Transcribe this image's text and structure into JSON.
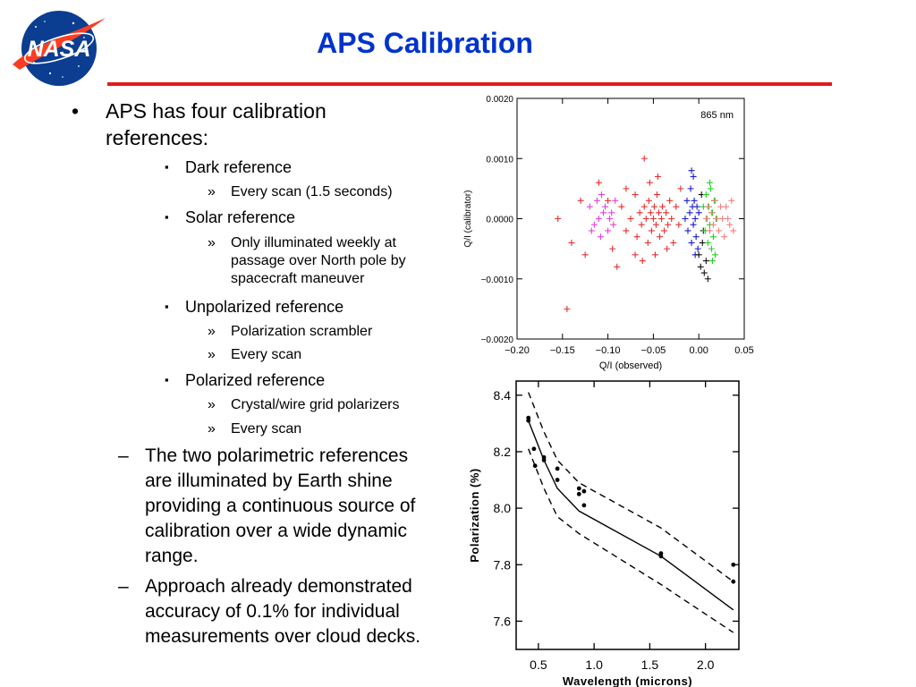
{
  "slide": {
    "title": "APS Calibration",
    "logo_text": "NASA",
    "colors": {
      "title": "#0033cc",
      "rule": "#e21b1b",
      "logo_blue": "#0b3d91",
      "logo_red": "#fc3d21"
    }
  },
  "bullets": {
    "main": {
      "marker": "•",
      "lines": [
        "APS has four calibration",
        "references:"
      ]
    },
    "dark": {
      "marker": "▪",
      "label": "Dark reference"
    },
    "dark_sub": {
      "marker": "»",
      "lines": [
        "Every scan (1.5 seconds)"
      ]
    },
    "solar": {
      "marker": "▪",
      "label": "Solar reference"
    },
    "solar_sub": {
      "marker": "»",
      "lines": [
        "Only illuminated weekly at",
        "passage over North pole by",
        "spacecraft maneuver"
      ]
    },
    "unpol": {
      "marker": "▪",
      "label": "Unpolarized reference"
    },
    "unpol_sub1": {
      "marker": "»",
      "lines": [
        "Polarization scrambler"
      ]
    },
    "unpol_sub2": {
      "marker": "»",
      "lines": [
        "Every scan"
      ]
    },
    "pol": {
      "marker": "▪",
      "label": "Polarized reference"
    },
    "pol_sub1": {
      "marker": "»",
      "lines": [
        "Crystal/wire grid polarizers"
      ]
    },
    "pol_sub2": {
      "marker": "»",
      "lines": [
        "Every scan"
      ]
    },
    "dash1": {
      "marker": "–",
      "lines": [
        "The two polarimetric references",
        "are illuminated by Earth shine",
        "providing a continuous source of",
        "calibration over a wide dynamic",
        "range."
      ]
    },
    "dash2": {
      "marker": "–",
      "lines": [
        "Approach already demonstrated",
        "accuracy of 0.1% for individual",
        "measurements over cloud decks."
      ]
    }
  },
  "chart_data": [
    {
      "type": "scatter",
      "annotation": "865 nm",
      "xlabel": "Q/I (observed)",
      "ylabel": "Q/I (calibrator)",
      "xlim": [
        -0.2,
        0.05
      ],
      "ylim": [
        -0.002,
        0.002
      ],
      "xticks": [
        -0.2,
        -0.15,
        -0.1,
        -0.05,
        0.0,
        0.05
      ],
      "xtick_labels": [
        "−0.20",
        "−0.15",
        "−0.10",
        "−0.05",
        "0.00",
        "0.05"
      ],
      "yticks": [
        -0.002,
        -0.001,
        0.0,
        0.001,
        0.002
      ],
      "ytick_labels": [
        "−0.0020",
        "−0.0010",
        "0.0000",
        "0.0010",
        "0.0020"
      ],
      "marker": "+",
      "series": [
        {
          "color": "#e03030",
          "points": [
            [
              -0.155,
              0.0
            ],
            [
              -0.14,
              -0.0004
            ],
            [
              -0.1,
              0.0003
            ],
            [
              -0.085,
              0.0002
            ],
            [
              -0.08,
              -0.0002
            ],
            [
              -0.075,
              0.0
            ],
            [
              -0.07,
              0.0004
            ],
            [
              -0.068,
              -0.0003
            ],
            [
              -0.065,
              0.0001
            ],
            [
              -0.063,
              -0.0001
            ],
            [
              -0.06,
              0.0002
            ],
            [
              -0.058,
              0.0
            ],
            [
              -0.056,
              -0.0004
            ],
            [
              -0.055,
              0.0003
            ],
            [
              -0.053,
              0.0001
            ],
            [
              -0.052,
              -0.0002
            ],
            [
              -0.05,
              0.0
            ],
            [
              -0.049,
              0.0002
            ],
            [
              -0.047,
              -0.0001
            ],
            [
              -0.046,
              0.0004
            ],
            [
              -0.044,
              0.0001
            ],
            [
              -0.043,
              -0.0003
            ],
            [
              -0.041,
              0.0
            ],
            [
              -0.04,
              0.0002
            ],
            [
              -0.038,
              -0.0002
            ],
            [
              -0.036,
              0.0001
            ],
            [
              -0.034,
              -0.0001
            ],
            [
              -0.032,
              0.0003
            ],
            [
              -0.03,
              0.0
            ],
            [
              -0.028,
              -0.0004
            ],
            [
              -0.025,
              0.0002
            ],
            [
              -0.022,
              -0.0001
            ],
            [
              -0.06,
              0.001
            ],
            [
              -0.054,
              0.0006
            ],
            [
              -0.048,
              -0.0006
            ],
            [
              -0.062,
              -0.0007
            ],
            [
              -0.11,
              0.0006
            ],
            [
              -0.095,
              -0.0005
            ],
            [
              -0.13,
              0.0003
            ],
            [
              -0.125,
              -0.0006
            ],
            [
              -0.02,
              0.0005
            ],
            [
              -0.09,
              -0.0008
            ],
            [
              -0.045,
              0.0007
            ],
            [
              -0.035,
              -0.0005
            ],
            [
              -0.08,
              0.0005
            ],
            [
              -0.07,
              -0.0006
            ],
            [
              -0.145,
              -0.0015
            ]
          ]
        },
        {
          "color": "#e040e0",
          "points": [
            [
              -0.12,
              0.0002
            ],
            [
              -0.115,
              -0.0001
            ],
            [
              -0.112,
              0.0003
            ],
            [
              -0.11,
              0.0
            ],
            [
              -0.108,
              -0.0003
            ],
            [
              -0.105,
              0.0001
            ],
            [
              -0.103,
              0.0002
            ],
            [
              -0.1,
              -0.0002
            ],
            [
              -0.098,
              0.0
            ],
            [
              -0.096,
              0.0001
            ],
            [
              -0.094,
              -0.0001
            ],
            [
              -0.092,
              0.0003
            ],
            [
              -0.118,
              -0.0002
            ],
            [
              -0.107,
              0.0004
            ]
          ]
        },
        {
          "color": "#1a1ad0",
          "points": [
            [
              -0.015,
              0.0
            ],
            [
              -0.013,
              0.0003
            ],
            [
              -0.012,
              -0.0002
            ],
            [
              -0.01,
              0.0001
            ],
            [
              -0.009,
              0.0005
            ],
            [
              -0.008,
              -0.0004
            ],
            [
              -0.007,
              0.0002
            ],
            [
              -0.006,
              -0.0001
            ],
            [
              -0.005,
              0.0003
            ],
            [
              -0.004,
              0.0
            ],
            [
              -0.003,
              -0.0003
            ],
            [
              -0.002,
              0.0002
            ],
            [
              -0.001,
              -0.0005
            ],
            [
              0.0,
              0.0001
            ],
            [
              -0.006,
              0.0007
            ],
            [
              -0.004,
              -0.0006
            ],
            [
              -0.008,
              0.0008
            ]
          ]
        },
        {
          "color": "#111111",
          "points": [
            [
              0.0,
              -0.0006
            ],
            [
              0.002,
              -0.0008
            ],
            [
              0.004,
              -0.0004
            ],
            [
              0.006,
              -0.0009
            ],
            [
              0.008,
              -0.0007
            ],
            [
              0.01,
              -0.001
            ],
            [
              0.003,
              0.0004
            ],
            [
              0.005,
              -0.0002
            ]
          ]
        },
        {
          "color": "#20d020",
          "points": [
            [
              0.005,
              0.0002
            ],
            [
              0.007,
              -0.0002
            ],
            [
              0.008,
              0.0004
            ],
            [
              0.009,
              0.0
            ],
            [
              0.01,
              -0.0004
            ],
            [
              0.011,
              0.0002
            ],
            [
              0.012,
              -0.0001
            ],
            [
              0.013,
              0.0005
            ],
            [
              0.014,
              -0.0005
            ],
            [
              0.015,
              0.0001
            ],
            [
              0.016,
              -0.0003
            ],
            [
              0.017,
              0.0003
            ],
            [
              0.018,
              -0.0006
            ],
            [
              0.019,
              0.0
            ],
            [
              0.012,
              0.0006
            ],
            [
              0.015,
              -0.0007
            ]
          ]
        },
        {
          "color": "#f08080",
          "points": [
            [
              0.008,
              0.0
            ],
            [
              0.01,
              0.0002
            ],
            [
              0.012,
              -0.0002
            ],
            [
              0.014,
              0.0001
            ],
            [
              0.016,
              -0.0001
            ],
            [
              0.018,
              0.0003
            ],
            [
              0.02,
              0.0
            ],
            [
              0.022,
              -0.0002
            ],
            [
              0.024,
              0.0002
            ],
            [
              0.026,
              0.0
            ],
            [
              0.028,
              -0.0003
            ],
            [
              0.03,
              0.0002
            ],
            [
              0.032,
              0.0
            ],
            [
              0.034,
              -0.0001
            ],
            [
              0.036,
              0.0003
            ],
            [
              0.038,
              -0.0002
            ]
          ]
        }
      ]
    },
    {
      "type": "line",
      "xlabel": "Wavelength (microns)",
      "ylabel": "Polarization (%)",
      "xlim": [
        0.3,
        2.3
      ],
      "ylim": [
        7.5,
        8.45
      ],
      "xticks": [
        0.5,
        1.0,
        1.5,
        2.0
      ],
      "xtick_labels": [
        "0.5",
        "1.0",
        "1.5",
        "2.0"
      ],
      "yticks": [
        7.6,
        7.8,
        8.0,
        8.2,
        8.4
      ],
      "ytick_labels": [
        "7.6",
        "7.8",
        "8.0",
        "8.2",
        "8.4"
      ],
      "series": [
        {
          "style": "solid",
          "x": [
            0.41,
            0.55,
            0.67,
            0.865,
            1.6,
            2.25
          ],
          "y": [
            8.31,
            8.17,
            8.07,
            7.99,
            7.83,
            7.64
          ]
        },
        {
          "style": "dashed",
          "x": [
            0.41,
            0.55,
            0.67,
            0.865,
            1.6,
            2.25
          ],
          "y": [
            8.41,
            8.27,
            8.17,
            8.09,
            7.93,
            7.74
          ]
        },
        {
          "style": "dashed",
          "x": [
            0.41,
            0.55,
            0.67,
            0.865,
            1.6,
            2.25
          ],
          "y": [
            8.21,
            8.07,
            7.97,
            7.91,
            7.73,
            7.56
          ]
        }
      ],
      "points": [
        [
          0.41,
          8.32
        ],
        [
          0.41,
          8.31
        ],
        [
          0.46,
          8.21
        ],
        [
          0.47,
          8.15
        ],
        [
          0.55,
          8.18
        ],
        [
          0.55,
          8.17
        ],
        [
          0.67,
          8.14
        ],
        [
          0.67,
          8.1
        ],
        [
          0.865,
          8.07
        ],
        [
          0.865,
          8.05
        ],
        [
          0.91,
          8.06
        ],
        [
          0.91,
          8.01
        ],
        [
          1.6,
          7.84
        ],
        [
          1.6,
          7.83
        ],
        [
          2.25,
          7.8
        ],
        [
          2.25,
          7.74
        ]
      ]
    }
  ]
}
